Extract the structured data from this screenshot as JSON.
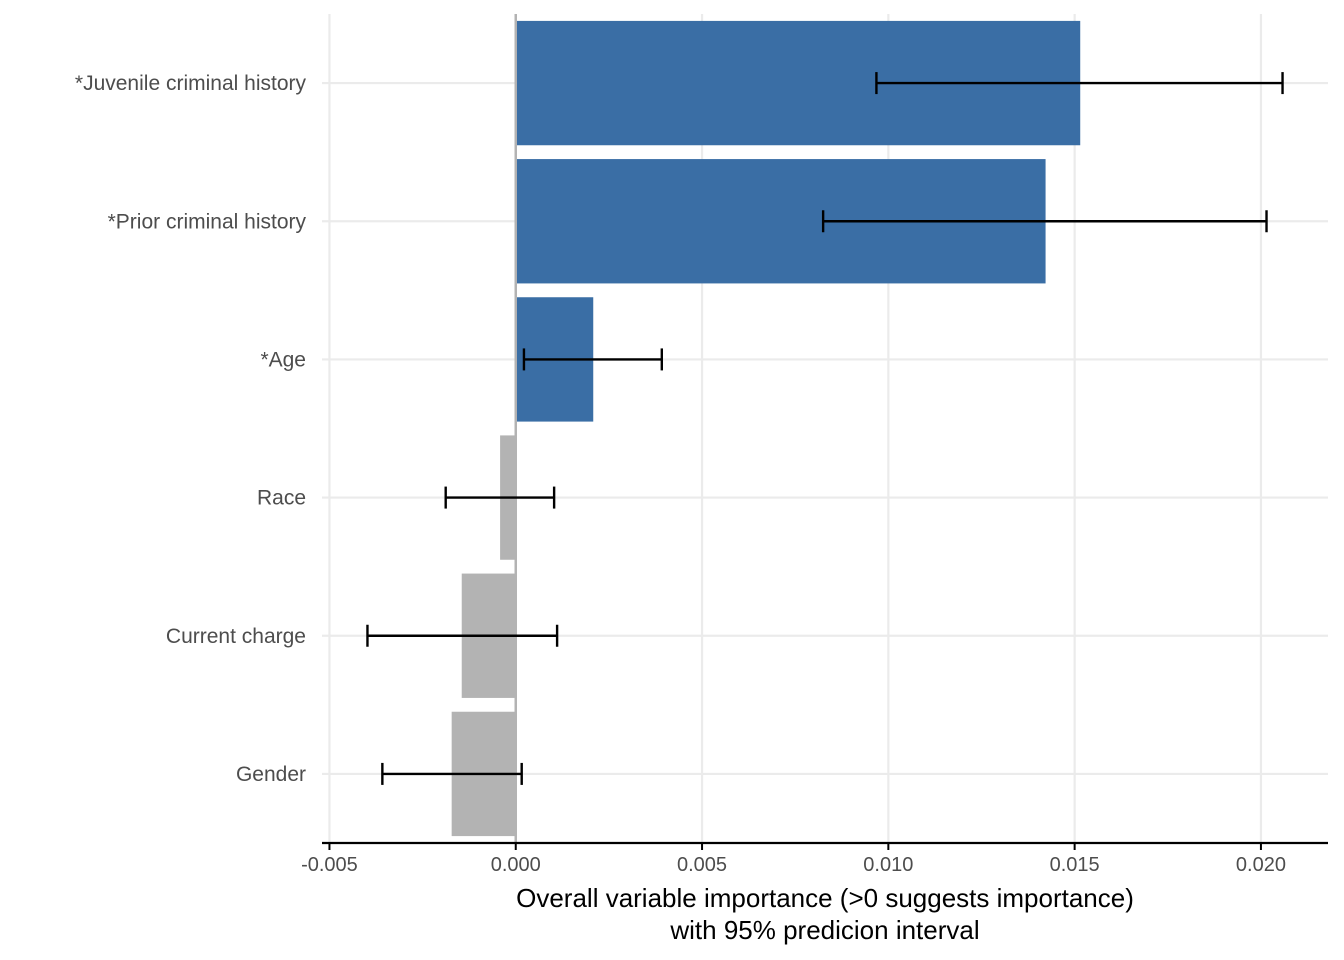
{
  "chart_data": {
    "type": "bar",
    "orientation": "horizontal",
    "categories": [
      "*Juvenile criminal history",
      "*Prior criminal history",
      "*Age",
      "Race",
      "Current charge",
      "Gender"
    ],
    "values": [
      0.01515,
      0.01422,
      0.00208,
      -0.00042,
      -0.00145,
      -0.00172
    ],
    "ci_lower": [
      0.00968,
      0.00825,
      0.00022,
      -0.00188,
      -0.00398,
      -0.00358
    ],
    "ci_upper": [
      0.02058,
      0.02015,
      0.00392,
      0.00103,
      0.00111,
      0.00016
    ],
    "significant": [
      true,
      true,
      true,
      false,
      false,
      false
    ],
    "xlabel": [
      "Overall variable importance (>0 suggests importance)",
      "with 95% predicion interval"
    ],
    "xlim": [
      -0.0052,
      0.0218
    ],
    "xticks": [
      -0.005,
      0.0,
      0.005,
      0.01,
      0.015,
      0.02
    ],
    "xtick_labels": [
      "-0.005",
      "0.000",
      "0.005",
      "0.010",
      "0.015",
      "0.020"
    ],
    "grid": true,
    "colors": {
      "significant": "#3a6ea5",
      "nonsignificant": "#b3b3b3",
      "errorbar": "#000000",
      "grid": "#ebebeb",
      "zero_line": "#b3b3b3"
    }
  }
}
